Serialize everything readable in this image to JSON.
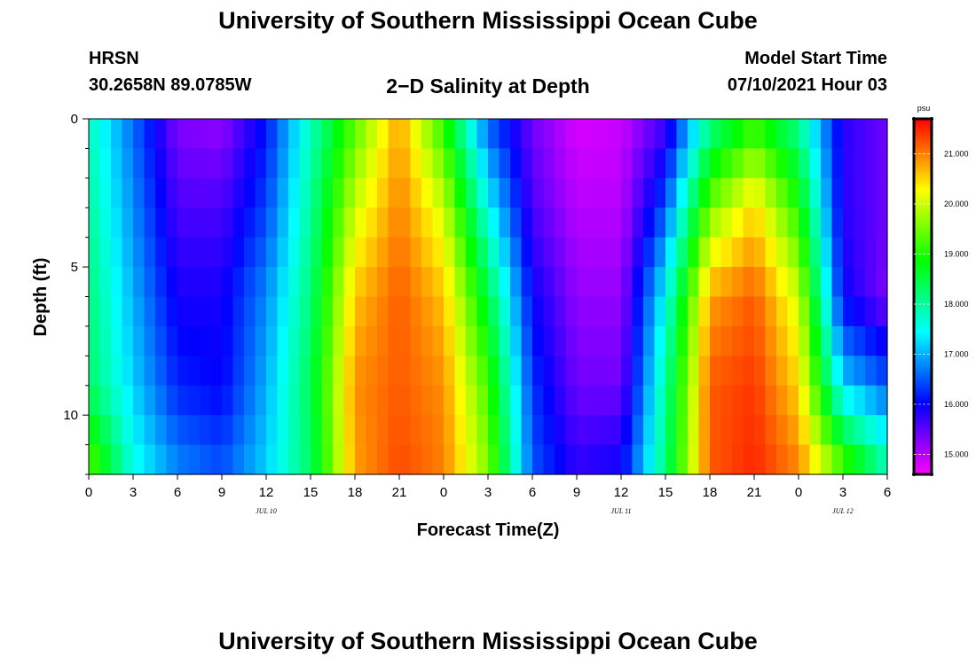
{
  "header": {
    "title": "University of Southern Mississippi Ocean Cube",
    "station": "HRSN",
    "coords": "30.2658N  89.0785W",
    "product": "2−D Salinity at Depth",
    "model_start_label": "Model Start Time",
    "model_start_value": "07/10/2021 Hour 03"
  },
  "footer": {
    "title": "University of Southern Mississippi Ocean Cube"
  },
  "chart_data": {
    "type": "heatmap",
    "title": "2-D Salinity at Depth",
    "xlabel": "Forecast Time(Z)",
    "ylabel": "Depth (ft)",
    "x_range_hours": [
      0,
      54
    ],
    "x_ticks": [
      {
        "h": 0,
        "label": "0"
      },
      {
        "h": 3,
        "label": "3"
      },
      {
        "h": 6,
        "label": "6"
      },
      {
        "h": 9,
        "label": "9"
      },
      {
        "h": 12,
        "label": "12"
      },
      {
        "h": 15,
        "label": "15"
      },
      {
        "h": 18,
        "label": "18"
      },
      {
        "h": 21,
        "label": "21"
      },
      {
        "h": 24,
        "label": "0"
      },
      {
        "h": 27,
        "label": "3"
      },
      {
        "h": 30,
        "label": "6"
      },
      {
        "h": 33,
        "label": "9"
      },
      {
        "h": 36,
        "label": "12"
      },
      {
        "h": 39,
        "label": "15"
      },
      {
        "h": 42,
        "label": "18"
      },
      {
        "h": 45,
        "label": "21"
      },
      {
        "h": 48,
        "label": "0"
      },
      {
        "h": 51,
        "label": "3"
      },
      {
        "h": 54,
        "label": "6"
      }
    ],
    "date_labels": [
      {
        "h": 12,
        "label": "JUL 10"
      },
      {
        "h": 36,
        "label": "JUL 11"
      },
      {
        "h": 51,
        "label": "JUL 12"
      }
    ],
    "y_range_ft": [
      0,
      12
    ],
    "y_ticks": [
      {
        "v": 0,
        "label": "0"
      },
      {
        "v": 5,
        "label": "5"
      },
      {
        "v": 10,
        "label": "10"
      }
    ],
    "colorbar": {
      "unit": "psu",
      "range": [
        14.6,
        21.7
      ],
      "ticks": [
        {
          "v": 15.0,
          "label": "15.000"
        },
        {
          "v": 16.0,
          "label": "16.000"
        },
        {
          "v": 17.0,
          "label": "17.000"
        },
        {
          "v": 18.0,
          "label": "18.000"
        },
        {
          "v": 19.0,
          "label": "19.000"
        },
        {
          "v": 20.0,
          "label": "20.000"
        },
        {
          "v": 21.0,
          "label": "21.000"
        }
      ]
    },
    "time_hours": [
      0,
      3,
      6,
      9,
      12,
      15,
      18,
      21,
      24,
      27,
      30,
      33,
      36,
      39,
      42,
      45,
      48,
      51,
      54
    ],
    "depth_ft": [
      0,
      3,
      6,
      9,
      12
    ],
    "salinity_psu": [
      [
        17.8,
        16.6,
        15.3,
        15.2,
        16.1,
        17.8,
        19.3,
        20.8,
        19.0,
        16.5,
        15.4,
        14.8,
        14.9,
        15.6,
        18.0,
        19.0,
        18.0,
        15.8,
        15.4
      ],
      [
        18.0,
        16.8,
        15.6,
        15.6,
        16.4,
        18.0,
        20.0,
        21.0,
        20.0,
        17.5,
        15.6,
        15.0,
        15.0,
        16.5,
        19.5,
        20.5,
        19.0,
        15.8,
        15.4
      ],
      [
        18.2,
        17.0,
        15.9,
        15.9,
        16.8,
        18.2,
        20.6,
        21.2,
        20.6,
        18.5,
        16.0,
        15.2,
        15.2,
        17.5,
        20.8,
        21.2,
        20.0,
        16.0,
        15.3
      ],
      [
        18.3,
        17.2,
        16.2,
        16.0,
        17.0,
        18.4,
        20.9,
        21.2,
        20.9,
        19.2,
        16.3,
        15.4,
        15.4,
        18.0,
        21.2,
        21.4,
        20.5,
        17.2,
        16.5
      ],
      [
        19.5,
        17.6,
        16.8,
        16.5,
        17.2,
        18.3,
        20.8,
        21.3,
        21.0,
        19.6,
        16.5,
        15.8,
        16.0,
        18.2,
        21.2,
        21.5,
        21.0,
        19.5,
        18.0
      ]
    ]
  }
}
